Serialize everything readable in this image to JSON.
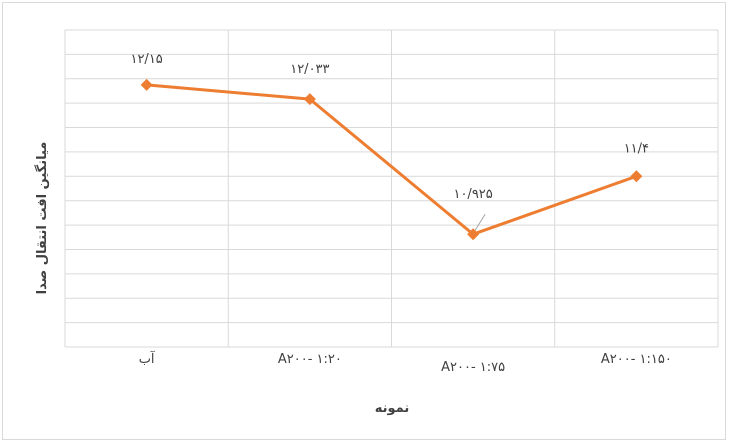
{
  "chart_data": {
    "type": "line",
    "categories": [
      "آب",
      "A۲۰۰- ۱:۲۰",
      "A۲۰۰- ۱:۷۵",
      "A۲۰۰- ۱:۱۵۰"
    ],
    "series": [
      {
        "values": [
          12.15,
          12.033,
          10.925,
          11.4
        ]
      }
    ],
    "data_labels": [
      "۱۲/۱۵",
      "۱۲/۰۳۳",
      "۱۰/۹۲۵",
      "۱۱/۴"
    ],
    "xlabel": "نمونه",
    "ylabel": "میانگین افت انتقال صدا",
    "ylim": [
      10,
      12.6
    ],
    "grid": true,
    "colors": {
      "series": "#ed7d31",
      "grid": "#d9d9d9",
      "text": "#404040"
    }
  }
}
